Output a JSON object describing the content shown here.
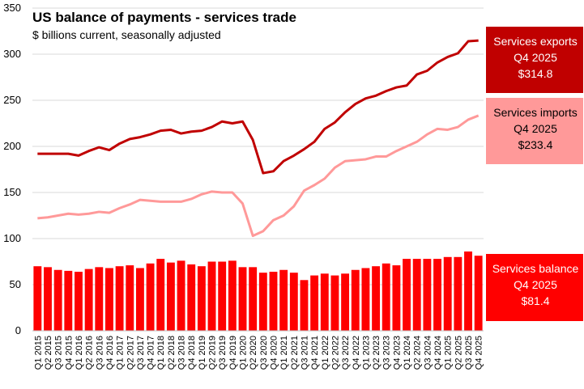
{
  "chart_data": {
    "type": "bar+line",
    "title": "US balance of payments - services trade",
    "subtitle": "$ billions current, seasonally adjusted",
    "ylim": [
      0,
      350
    ],
    "yticks": [
      0,
      50,
      100,
      150,
      200,
      250,
      300,
      350
    ],
    "grid": true,
    "categories": [
      "Q1 2015",
      "Q2 2015",
      "Q3 2015",
      "Q4 2015",
      "Q1 2016",
      "Q2 2016",
      "Q3 2016",
      "Q4 2016",
      "Q1 2017",
      "Q2 2017",
      "Q3 2017",
      "Q4 2017",
      "Q1 2018",
      "Q2 2018",
      "Q3 2018",
      "Q4 2018",
      "Q1 2019",
      "Q2 2019",
      "Q3 2019",
      "Q4 2019",
      "Q1 2020",
      "Q2 2020",
      "Q3 2020",
      "Q4 2020",
      "Q1 2021",
      "Q2 2021",
      "Q3 2021",
      "Q4 2021",
      "Q1 2022",
      "Q2 2022",
      "Q3 2022",
      "Q4 2022",
      "Q1 2023",
      "Q2 2023",
      "Q3 2023",
      "Q4 2023",
      "Q1 2024",
      "Q2 2024",
      "Q3 2024",
      "Q4 2024",
      "Q1 2025",
      "Q2 2025",
      "Q3 2025",
      "Q4 2025"
    ],
    "series": [
      {
        "name": "Services exports",
        "type": "line",
        "color": "#c00000",
        "values": [
          192,
          192,
          192,
          192,
          190,
          195,
          199,
          196,
          203,
          208,
          210,
          213,
          217,
          218,
          214,
          216,
          217,
          221,
          227,
          225,
          227,
          207,
          171,
          173,
          184,
          190,
          197,
          205,
          219,
          226,
          237,
          246,
          252,
          255,
          260,
          264,
          266,
          278,
          282,
          291,
          297,
          301,
          314,
          314.8
        ]
      },
      {
        "name": "Services imports",
        "type": "line",
        "color": "#ff9999",
        "values": [
          122,
          123,
          125,
          127,
          126,
          127,
          129,
          128,
          133,
          137,
          142,
          141,
          140,
          140,
          140,
          143,
          148,
          151,
          150,
          150,
          138,
          103,
          108,
          120,
          125,
          135,
          152,
          158,
          165,
          177,
          184,
          185,
          186,
          189,
          189,
          195,
          200,
          205,
          213,
          219,
          218,
          221,
          229,
          233.4
        ]
      },
      {
        "name": "Services balance",
        "type": "bar",
        "color": "#ff0000",
        "values": [
          70,
          69,
          66,
          65,
          64,
          67,
          69,
          68,
          70,
          71,
          68,
          73,
          78,
          74,
          76,
          72,
          70,
          75,
          75,
          76,
          69,
          69,
          63,
          64,
          66,
          63,
          55,
          60,
          62,
          60,
          62,
          66,
          68,
          70,
          73,
          71,
          78,
          78,
          78,
          78,
          80,
          80,
          86,
          81.4
        ]
      }
    ],
    "callouts": [
      {
        "series": "Services exports",
        "line1": "Services exports",
        "line2": "Q4 2025",
        "line3": "$314.8",
        "bg": "#c00000",
        "fg": "#ffffff"
      },
      {
        "series": "Services imports",
        "line1": "Services imports",
        "line2": "Q4 2025",
        "line3": "$233.4",
        "bg": "#ff9999",
        "fg": "#000000"
      },
      {
        "series": "Services balance",
        "line1": "Services balance",
        "line2": "Q4 2025",
        "line3": "$81.4",
        "bg": "#ff0000",
        "fg": "#ffffff"
      }
    ]
  }
}
